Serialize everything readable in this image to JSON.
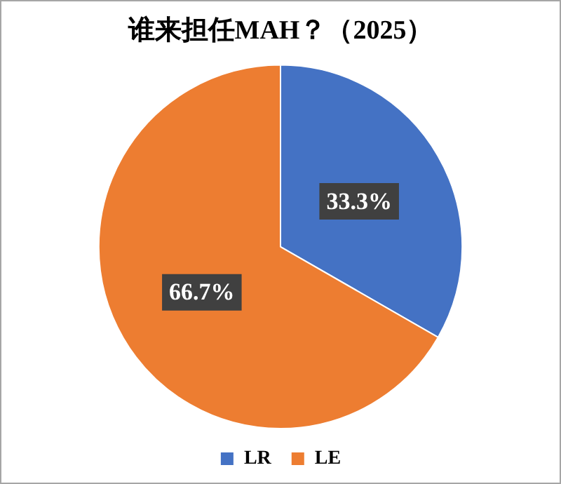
{
  "chart_data": {
    "type": "pie",
    "title": "谁来担任MAH？（2025）",
    "categories": [
      "LR",
      "LE"
    ],
    "values": [
      33.3,
      66.7
    ],
    "colors": [
      "#4472c4",
      "#ed7d31"
    ],
    "value_labels": [
      "33.3%",
      "66.7%"
    ],
    "legend": "bottom"
  }
}
